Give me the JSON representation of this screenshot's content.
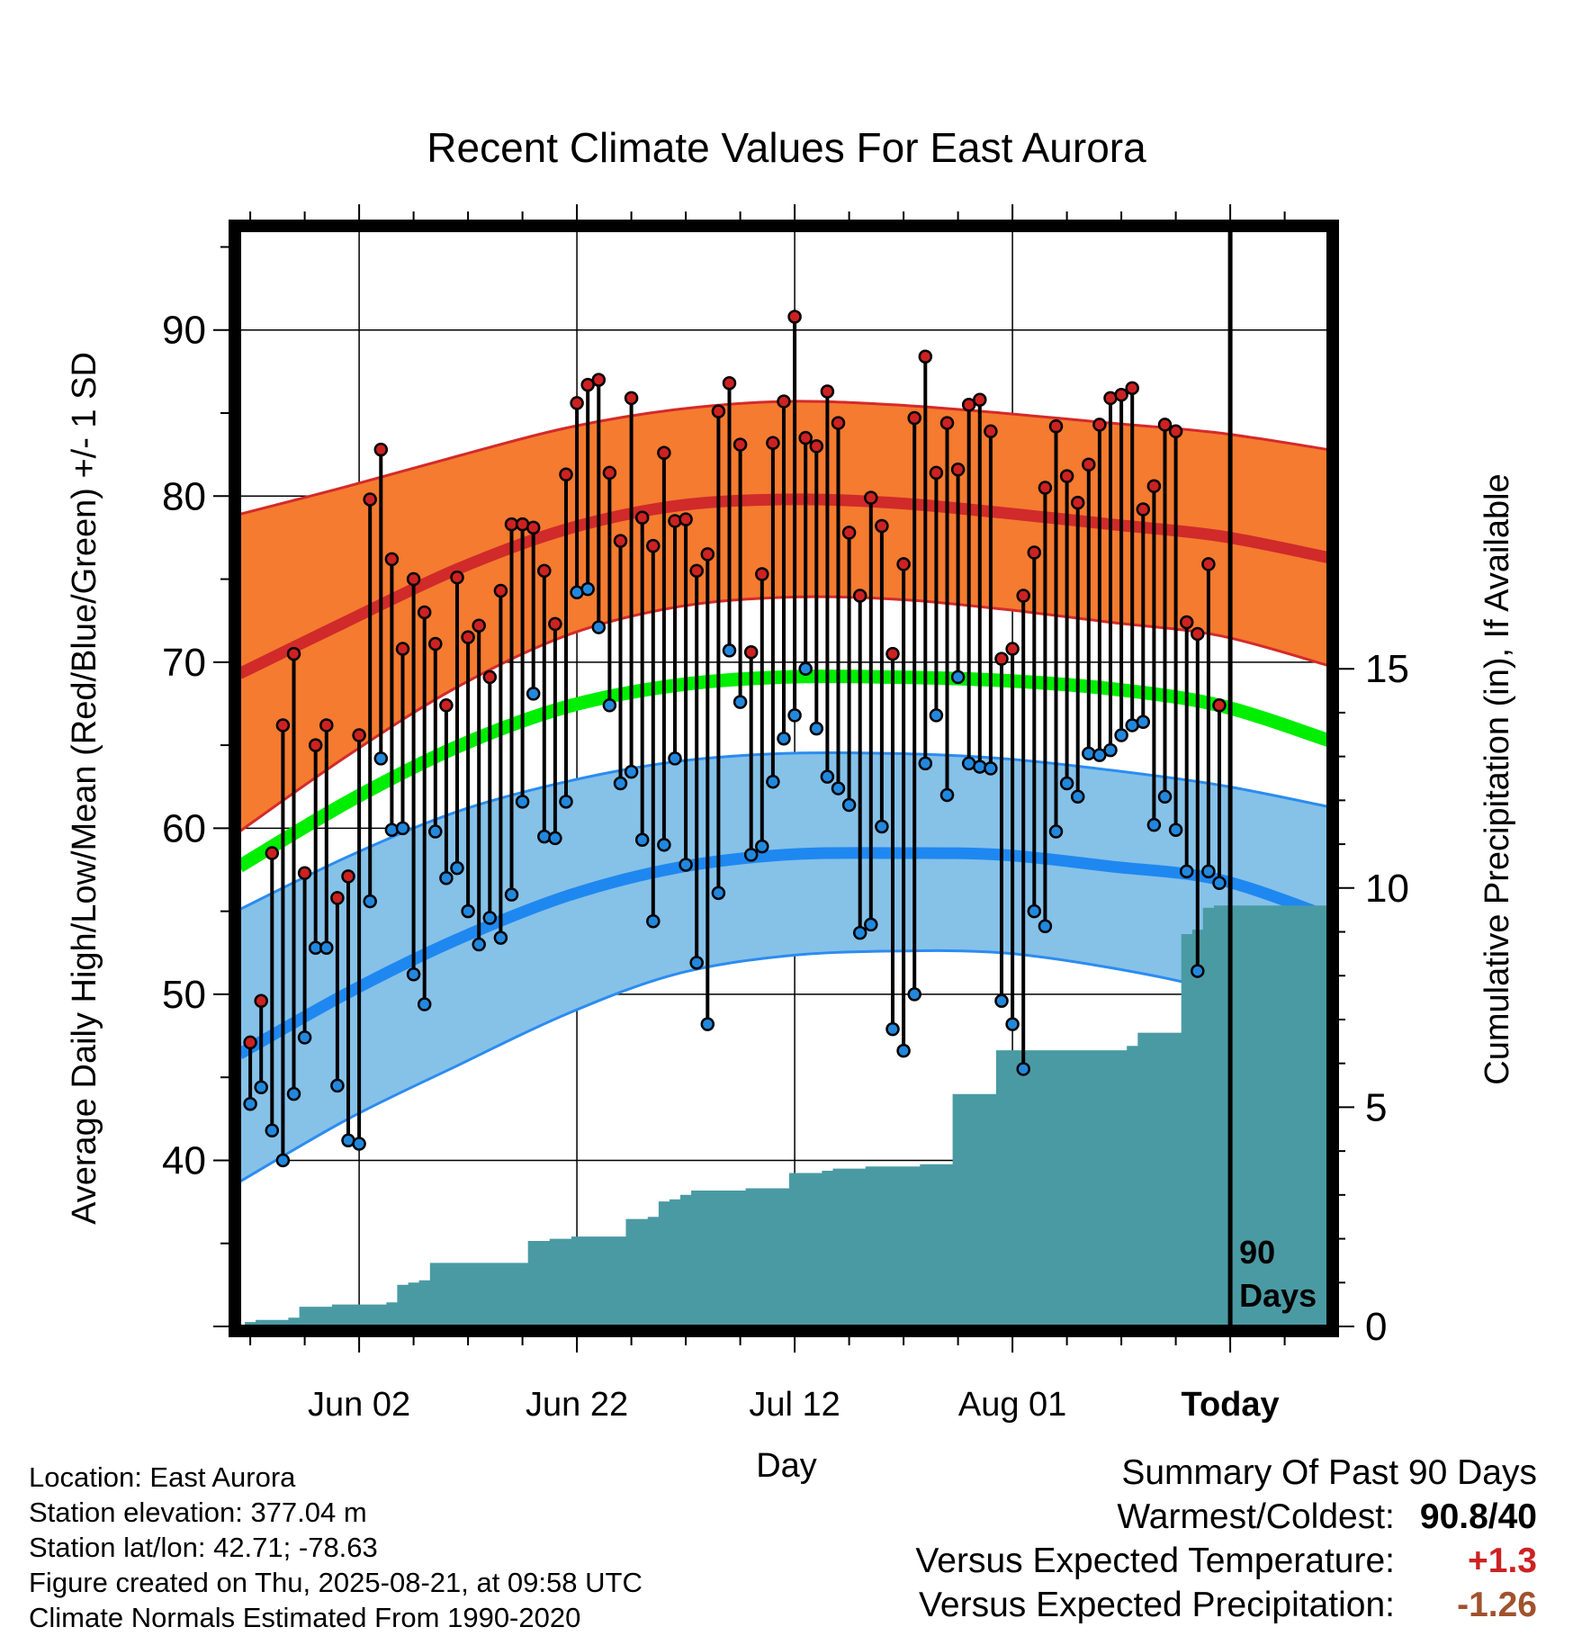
{
  "chart_data": {
    "type": "line",
    "title": "Recent Climate Values For East Aurora",
    "xlabel": "Day",
    "ylabel": "Average Daily High/Low/Mean (Red/Blue/Green) +/- 1 SD",
    "y2label": "Cumulative Precipitation (in), If Available",
    "ylim": [
      30,
      96
    ],
    "y2lim": [
      0,
      25
    ],
    "yticks": [
      40,
      50,
      60,
      70,
      80,
      90
    ],
    "y2ticks": [
      0,
      5,
      10,
      15
    ],
    "xticks": [
      {
        "day": 10,
        "label": "Jun 02"
      },
      {
        "day": 30,
        "label": "Jun 22"
      },
      {
        "day": 50,
        "label": "Jul 12"
      },
      {
        "day": 70,
        "label": "Aug 01"
      },
      {
        "day": 90,
        "label": "Today"
      }
    ],
    "xlim": [
      -1,
      99
    ],
    "today_marker": {
      "day": 90,
      "label_line1": "90",
      "label_line2": "Days"
    },
    "normals": {
      "days": [
        -1,
        9,
        19,
        29,
        39,
        49,
        59,
        69,
        79,
        89,
        99
      ],
      "high_mean": [
        69.3,
        72.5,
        75.6,
        78.0,
        79.4,
        79.8,
        79.6,
        79.0,
        78.3,
        77.6,
        76.3
      ],
      "high_upper": [
        78.9,
        80.6,
        82.4,
        84.1,
        85.2,
        85.7,
        85.5,
        85.0,
        84.4,
        83.8,
        82.8
      ],
      "high_lower": [
        59.8,
        64.4,
        68.5,
        71.6,
        73.3,
        73.9,
        73.8,
        73.2,
        72.4,
        71.6,
        69.8
      ],
      "mean": [
        57.7,
        61.6,
        64.9,
        67.3,
        68.6,
        69.1,
        69.1,
        68.9,
        68.4,
        67.4,
        65.3
      ],
      "low_mean": [
        46.4,
        50.1,
        53.3,
        55.9,
        57.6,
        58.4,
        58.5,
        58.4,
        57.7,
        56.9,
        54.7
      ],
      "low_upper": [
        55.1,
        58.3,
        61.0,
        62.8,
        64.0,
        64.5,
        64.5,
        64.2,
        63.5,
        62.6,
        61.3
      ],
      "low_lower": [
        38.7,
        42.5,
        45.7,
        48.8,
        51.2,
        52.3,
        52.6,
        52.5,
        51.6,
        50.2,
        48.0
      ]
    },
    "series": [
      {
        "name": "High",
        "color": "#cc2222",
        "days": [
          0,
          1,
          2,
          3,
          4,
          5,
          6,
          7,
          8,
          9,
          10,
          11,
          12,
          13,
          14,
          15,
          16,
          17,
          18,
          19,
          20,
          21,
          22,
          23,
          24,
          25,
          26,
          27,
          28,
          29,
          30,
          31,
          32,
          33,
          34,
          35,
          36,
          37,
          38,
          39,
          40,
          41,
          42,
          43,
          44,
          45,
          46,
          47,
          48,
          49,
          50,
          51,
          52,
          53,
          54,
          55,
          56,
          57,
          58,
          59,
          60,
          61,
          62,
          63,
          64,
          65,
          66,
          67,
          68,
          69,
          70,
          71,
          72,
          73,
          74,
          75,
          76,
          77,
          78,
          79,
          80,
          81,
          82,
          83,
          84,
          85,
          86,
          87,
          88,
          89
        ],
        "values": [
          47.1,
          49.6,
          58.5,
          66.2,
          70.5,
          57.3,
          65.0,
          66.2,
          55.8,
          57.1,
          65.6,
          79.8,
          82.8,
          76.2,
          70.8,
          75.0,
          73.0,
          71.1,
          67.4,
          75.1,
          71.5,
          72.2,
          69.1,
          74.3,
          78.3,
          78.3,
          78.1,
          75.5,
          72.3,
          81.3,
          85.6,
          86.7,
          87.0,
          81.4,
          77.3,
          85.9,
          78.7,
          77.0,
          82.6,
          78.5,
          78.6,
          75.5,
          76.5,
          85.1,
          86.8,
          83.1,
          70.6,
          75.3,
          83.2,
          85.7,
          90.8,
          83.5,
          83.0,
          86.3,
          84.4,
          77.8,
          74.0,
          79.9,
          78.2,
          70.5,
          75.9,
          84.7,
          88.4,
          81.4,
          84.4,
          81.6,
          85.5,
          85.8,
          83.9,
          70.2,
          70.8,
          74.0,
          76.6,
          80.5,
          84.2,
          81.2,
          79.6,
          81.9,
          84.3,
          85.9,
          86.1,
          86.5,
          79.2,
          80.6,
          84.3,
          83.9,
          72.4,
          71.7,
          75.9,
          67.4
        ]
      },
      {
        "name": "Low",
        "color": "#2288dd",
        "days": [
          0,
          1,
          2,
          3,
          4,
          5,
          6,
          7,
          8,
          9,
          10,
          11,
          12,
          13,
          14,
          15,
          16,
          17,
          18,
          19,
          20,
          21,
          22,
          23,
          24,
          25,
          26,
          27,
          28,
          29,
          30,
          31,
          32,
          33,
          34,
          35,
          36,
          37,
          38,
          39,
          40,
          41,
          42,
          43,
          44,
          45,
          46,
          47,
          48,
          49,
          50,
          51,
          52,
          53,
          54,
          55,
          56,
          57,
          58,
          59,
          60,
          61,
          62,
          63,
          64,
          65,
          66,
          67,
          68,
          69,
          70,
          71,
          72,
          73,
          74,
          75,
          76,
          77,
          78,
          79,
          80,
          81,
          82,
          83,
          84,
          85,
          86,
          87,
          88,
          89
        ],
        "values": [
          43.4,
          44.4,
          41.8,
          40.0,
          44.0,
          47.4,
          52.8,
          52.8,
          44.5,
          41.2,
          41.0,
          55.6,
          64.2,
          59.9,
          60.0,
          51.2,
          49.4,
          59.8,
          57.0,
          57.6,
          55.0,
          53.0,
          54.6,
          53.4,
          56.0,
          61.6,
          68.1,
          59.5,
          59.4,
          61.6,
          74.2,
          74.4,
          72.1,
          67.4,
          62.7,
          63.4,
          59.3,
          54.4,
          59.0,
          64.2,
          57.8,
          51.9,
          48.2,
          56.1,
          70.7,
          67.6,
          58.4,
          58.9,
          62.8,
          65.4,
          66.8,
          69.6,
          66.0,
          63.1,
          62.4,
          61.4,
          53.7,
          54.2,
          60.1,
          47.9,
          46.6,
          50.0,
          63.9,
          66.8,
          62.0,
          69.1,
          63.9,
          63.7,
          63.6,
          49.6,
          48.2,
          45.5,
          55.0,
          54.1,
          59.8,
          62.7,
          61.9,
          64.5,
          64.4,
          64.7,
          65.6,
          66.2,
          66.4,
          60.2,
          61.9,
          59.9,
          57.4,
          51.4,
          57.4,
          56.7
        ]
      }
    ],
    "precipitation": {
      "name": "Cumulative Precipitation",
      "color": "#4a9aa4",
      "units": "in",
      "days": [
        0,
        1,
        2,
        3,
        4,
        5,
        6,
        7,
        8,
        9,
        10,
        11,
        12,
        13,
        14,
        15,
        16,
        17,
        18,
        19,
        20,
        21,
        22,
        23,
        24,
        25,
        26,
        27,
        28,
        29,
        30,
        31,
        32,
        33,
        34,
        35,
        36,
        37,
        38,
        39,
        40,
        41,
        42,
        43,
        44,
        45,
        46,
        47,
        48,
        49,
        50,
        51,
        52,
        53,
        54,
        55,
        56,
        57,
        58,
        59,
        60,
        61,
        62,
        63,
        64,
        65,
        66,
        67,
        68,
        69,
        70,
        71,
        72,
        73,
        74,
        75,
        76,
        77,
        78,
        79,
        80,
        81,
        82,
        83,
        84,
        85,
        86,
        87,
        88,
        89,
        90,
        91,
        92,
        93,
        94,
        95,
        96,
        97,
        98,
        99
      ],
      "values": [
        0.1,
        0.15,
        0.15,
        0.15,
        0.2,
        0.45,
        0.45,
        0.45,
        0.5,
        0.5,
        0.5,
        0.5,
        0.5,
        0.55,
        0.95,
        1.0,
        1.05,
        1.45,
        1.45,
        1.45,
        1.45,
        1.45,
        1.45,
        1.45,
        1.45,
        1.45,
        1.95,
        1.95,
        2.0,
        2.0,
        2.05,
        2.05,
        2.05,
        2.05,
        2.05,
        2.45,
        2.45,
        2.5,
        2.85,
        2.9,
        3.0,
        3.1,
        3.1,
        3.1,
        3.1,
        3.1,
        3.15,
        3.15,
        3.15,
        3.15,
        3.5,
        3.5,
        3.5,
        3.55,
        3.6,
        3.6,
        3.6,
        3.65,
        3.65,
        3.65,
        3.65,
        3.65,
        3.7,
        3.7,
        3.7,
        5.3,
        5.3,
        5.3,
        5.3,
        6.3,
        6.3,
        6.3,
        6.3,
        6.3,
        6.3,
        6.3,
        6.3,
        6.3,
        6.3,
        6.3,
        6.3,
        6.4,
        6.7,
        6.7,
        6.7,
        6.7,
        8.95,
        9.05,
        9.55,
        9.6,
        9.6,
        9.6,
        9.6,
        9.6,
        9.6,
        9.6,
        9.6,
        9.6,
        9.6,
        9.6
      ]
    },
    "grid": true,
    "legend": "none"
  },
  "footer": {
    "location": "Location: East Aurora",
    "elevation": "Station elevation: 377.04 m",
    "latlon": "Station lat/lon: 42.71; -78.63",
    "created": "Figure created on Thu, 2025-08-21, at 09:58 UTC",
    "normals": "Climate Normals Estimated From 1990-2020"
  },
  "summary": {
    "heading": "Summary Of Past 90 Days",
    "warm_cold_label": "Warmest/Coldest:",
    "warm_value": "90.8",
    "cold_value": "/40",
    "temp_label": "Versus Expected Temperature:",
    "temp_value": "+1.3",
    "temp_color": "#cc2222",
    "precip_label": "Versus Expected Precipitation:",
    "precip_value": "-1.26",
    "precip_color": "#a0522d"
  }
}
